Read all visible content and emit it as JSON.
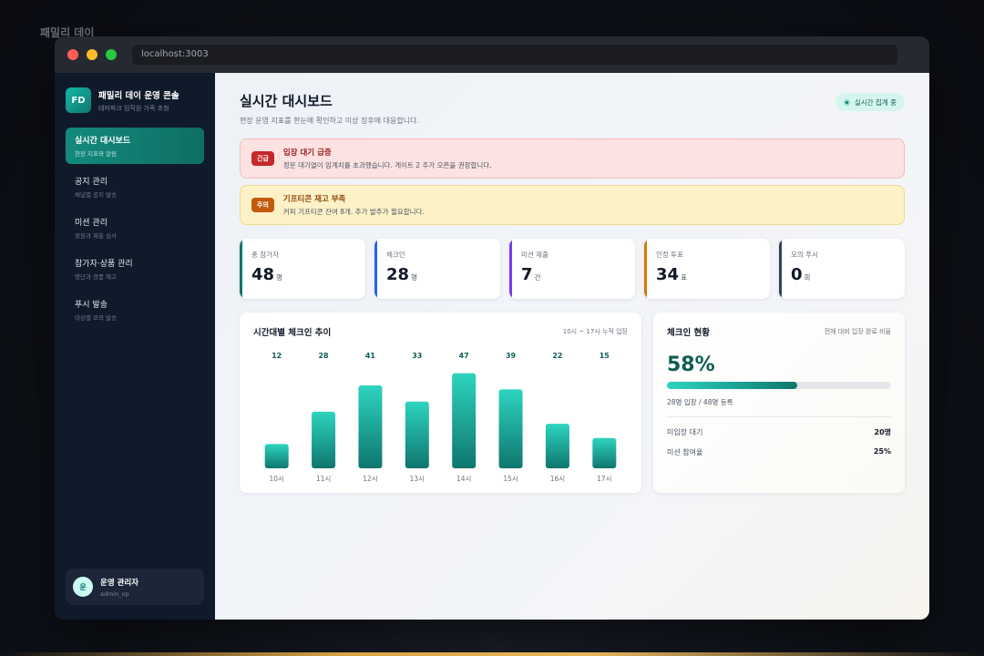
{
  "os_label": "패밀리 데이",
  "browser": {
    "url": "localhost:3003"
  },
  "brand": {
    "logo": "FD",
    "title": "패밀리 데이 운영 콘솔",
    "subtitle": "테마파크 임직원 가족 초청"
  },
  "nav": [
    {
      "label": "실시간 대시보드",
      "desc": "현장 지표와 알림",
      "active": true
    },
    {
      "label": "공지 관리",
      "desc": "채널별 공지 발송",
      "active": false
    },
    {
      "label": "미션 관리",
      "desc": "정원과 제출 심사",
      "active": false
    },
    {
      "label": "참가자·상품 관리",
      "desc": "명단과 경품 재고",
      "active": false
    },
    {
      "label": "푸시 발송",
      "desc": "대상별 모의 발송",
      "active": false
    }
  ],
  "user": {
    "avatar": "운",
    "name": "운영 관리자",
    "id": "admin_op"
  },
  "header": {
    "title": "실시간 대시보드",
    "subtitle": "현장 운영 지표를 한눈에 확인하고 이상 징후에 대응합니다.",
    "live_badge": "실시간 집계 중"
  },
  "alerts": [
    {
      "tag": "긴급",
      "title": "입장 대기 급증",
      "message": "정문 대기열이 임계치를 초과했습니다. 게이트 2 추가 오픈을 권장합니다.",
      "level": "urgent"
    },
    {
      "tag": "주의",
      "title": "기프티콘 재고 부족",
      "message": "커피 기프티콘 잔여 8개. 추가 발주가 필요합니다.",
      "level": "warn"
    }
  ],
  "stats": [
    {
      "label": "총 참가자",
      "value": "48",
      "unit": "명",
      "color": "#0f766e"
    },
    {
      "label": "체크인",
      "value": "28",
      "unit": "명",
      "color": "#2563eb"
    },
    {
      "label": "미션 제출",
      "value": "7",
      "unit": "건",
      "color": "#7c3aed"
    },
    {
      "label": "인정 투표",
      "value": "34",
      "unit": "표",
      "color": "#d97706"
    },
    {
      "label": "모의 푸시",
      "value": "0",
      "unit": "회",
      "color": "#334155"
    }
  ],
  "chart_card": {
    "title": "시간대별 체크인 추이",
    "note": "10시 ~ 17시 누적 입장"
  },
  "chart_data": {
    "type": "bar",
    "categories": [
      "10시",
      "11시",
      "12시",
      "13시",
      "14시",
      "15시",
      "16시",
      "17시"
    ],
    "values": [
      12,
      28,
      41,
      33,
      47,
      39,
      22,
      15
    ],
    "title": "시간대별 체크인 추이",
    "xlabel": "",
    "ylabel": "",
    "ylim": [
      0,
      50
    ],
    "grid": false,
    "data_labels": true,
    "colors": [
      "#2dd4bf",
      "#0f766e"
    ]
  },
  "checkin": {
    "title": "체크인 현황",
    "note": "전체 대비 입장 완료 비율",
    "percent": "58%",
    "progress": 0.58,
    "detail": "28명 입장 / 48명 등록",
    "rows": [
      {
        "label": "미입장 대기",
        "value": "20명"
      },
      {
        "label": "미션 참여율",
        "value": "25%"
      }
    ]
  }
}
